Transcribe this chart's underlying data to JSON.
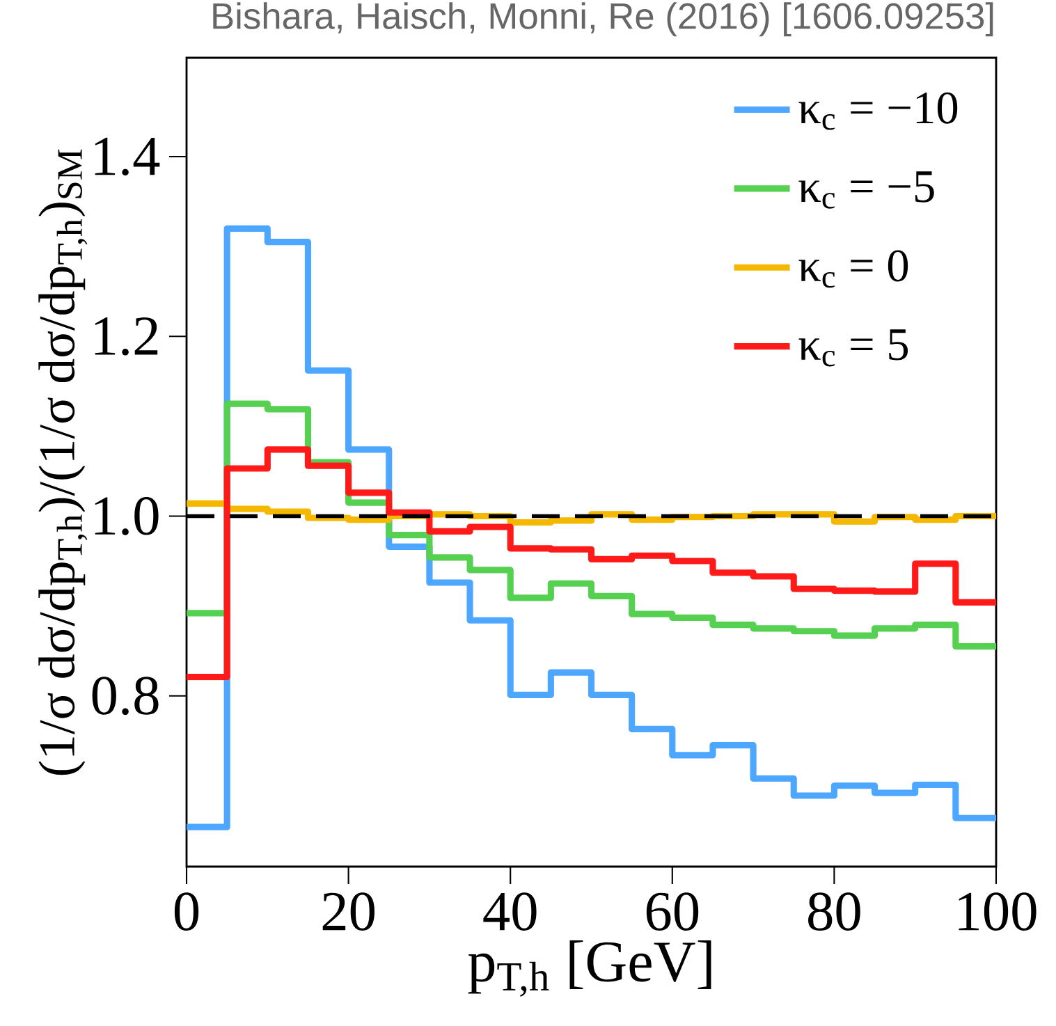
{
  "chart_data": {
    "type": "histogram",
    "xlabel": "p$_{T,h}$ [GeV]",
    "ylabel": "(1/σ dσ/dp$_{T,h}$)/(1/σ dσ/dp$_{T,h}$)$_{SM}$",
    "annotations": [
      "Bishara, Haisch, Monni, Re (2016) [1606.09253]"
    ],
    "bins": [
      0,
      5,
      10,
      15,
      20,
      25,
      30,
      35,
      40,
      45,
      50,
      55,
      60,
      65,
      70,
      75,
      80,
      85,
      90,
      95,
      100
    ],
    "series": [
      {
        "name": "κ$_{c}$ = −10",
        "color": "#4da6ff",
        "values": [
          0.654,
          1.32,
          1.305,
          1.162,
          1.074,
          0.966,
          0.926,
          0.884,
          0.801,
          0.826,
          0.801,
          0.763,
          0.734,
          0.745,
          0.708,
          0.689,
          0.7,
          0.692,
          0.701,
          0.664
        ]
      },
      {
        "name": "κ$_{c}$ = −5",
        "color": "#55d050",
        "values": [
          0.892,
          1.125,
          1.119,
          1.06,
          1.015,
          0.979,
          0.954,
          0.94,
          0.909,
          0.925,
          0.911,
          0.891,
          0.887,
          0.879,
          0.875,
          0.872,
          0.867,
          0.875,
          0.879,
          0.855
        ]
      },
      {
        "name": "κ$_{c}$ = 0",
        "color": "#f5b800",
        "values": [
          1.014,
          1.008,
          1.005,
          0.998,
          0.996,
          1.0,
          1.002,
          1.0,
          0.993,
          0.995,
          1.002,
          0.996,
          0.999,
          1.0,
          1.002,
          1.002,
          0.994,
          0.999,
          0.996,
          1.0
        ]
      },
      {
        "name": "κ$_{c}$ = 5",
        "color": "#ff1a1a",
        "values": [
          0.821,
          1.053,
          1.074,
          1.056,
          1.026,
          1.004,
          0.983,
          0.988,
          0.964,
          0.963,
          0.952,
          0.956,
          0.95,
          0.937,
          0.933,
          0.919,
          0.917,
          0.916,
          0.947,
          0.904
        ]
      }
    ],
    "xlim": [
      0,
      100
    ],
    "ylim": [
      0.61,
      1.51
    ],
    "xticks": [
      0,
      20,
      40,
      60,
      80,
      100
    ],
    "yticks": [
      {
        "value": 0.8,
        "label": "0.8"
      },
      {
        "value": 1.0,
        "label": "1.0"
      },
      {
        "value": 1.2,
        "label": "1.2"
      },
      {
        "value": 1.4,
        "label": "1.4"
      }
    ],
    "ref_lines": [
      {
        "axis": "y",
        "value": 1.0,
        "color": "#000000",
        "line_style": "dashed"
      }
    ],
    "legend": "top right",
    "grid": false
  }
}
